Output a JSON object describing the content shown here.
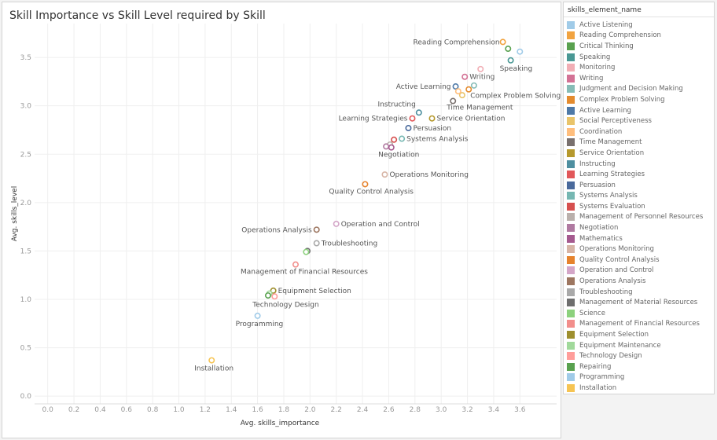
{
  "chart_data": {
    "type": "scatter",
    "title": "Skill Importance vs Skill Level required by Skill",
    "xlabel": "Avg. skills_importance",
    "ylabel": "Avg. skills_level",
    "xlim": [
      -0.1,
      3.88
    ],
    "ylim": [
      -0.08,
      3.85
    ],
    "xticks": [
      "0.0",
      "0.2",
      "0.4",
      "0.6",
      "0.8",
      "1.0",
      "1.2",
      "1.4",
      "1.6",
      "1.8",
      "2.0",
      "2.2",
      "2.4",
      "2.6",
      "2.8",
      "3.0",
      "3.2",
      "3.4",
      "3.6"
    ],
    "yticks": [
      "0.0",
      "0.5",
      "1.0",
      "1.5",
      "2.0",
      "2.5",
      "3.0",
      "3.5"
    ],
    "grid": true,
    "legend_position": "right",
    "legend_title": "skills_element_name",
    "series": [
      {
        "name": "Active Listening",
        "color": "#a0cbe8",
        "x": 3.6,
        "y": 3.56,
        "label": ""
      },
      {
        "name": "Reading Comprehension",
        "color": "#f1a340",
        "x": 3.47,
        "y": 3.66,
        "label": "Reading Comprehension"
      },
      {
        "name": "Critical Thinking",
        "color": "#59a14f",
        "x": 3.51,
        "y": 3.59,
        "label": ""
      },
      {
        "name": "Speaking",
        "color": "#499894",
        "x": 3.53,
        "y": 3.47,
        "label": "Speaking"
      },
      {
        "name": "Monitoring",
        "color": "#f1aeb5",
        "x": 3.3,
        "y": 3.38,
        "label": ""
      },
      {
        "name": "Writing",
        "color": "#d37295",
        "x": 3.18,
        "y": 3.3,
        "label": "Writing"
      },
      {
        "name": "Judgment and Decision Making",
        "color": "#86bcb6",
        "x": 3.25,
        "y": 3.21,
        "label": ""
      },
      {
        "name": "Complex Problem Solving",
        "color": "#e48b2e",
        "x": 3.21,
        "y": 3.17,
        "label": "Complex Problem Solving"
      },
      {
        "name": "Active Learning",
        "color": "#4e79a7",
        "x": 3.11,
        "y": 3.2,
        "label": "Active Learning"
      },
      {
        "name": "Social Perceptiveness",
        "color": "#e9c46a",
        "x": 3.16,
        "y": 3.11,
        "label": ""
      },
      {
        "name": "Coordination",
        "color": "#ffbe7d",
        "x": 3.13,
        "y": 3.15,
        "label": ""
      },
      {
        "name": "Time Management",
        "color": "#79706e",
        "x": 3.09,
        "y": 3.05,
        "label": "Time Management"
      },
      {
        "name": "Service Orientation",
        "color": "#b6992d",
        "x": 2.93,
        "y": 2.87,
        "label": "Service Orientation"
      },
      {
        "name": "Instructing",
        "color": "#4e8fa0",
        "x": 2.83,
        "y": 2.93,
        "label": "Instructing"
      },
      {
        "name": "Learning Strategies",
        "color": "#e15759",
        "x": 2.78,
        "y": 2.87,
        "label": "Learning Strategies"
      },
      {
        "name": "Persuasion",
        "color": "#4a6a9c",
        "x": 2.75,
        "y": 2.77,
        "label": "Persuasion"
      },
      {
        "name": "Systems Analysis",
        "color": "#76b7b2",
        "x": 2.7,
        "y": 2.66,
        "label": "Systems Analysis"
      },
      {
        "name": "Systems Evaluation",
        "color": "#d6504f",
        "x": 2.64,
        "y": 2.65,
        "label": ""
      },
      {
        "name": "Management of Personnel Resources",
        "color": "#bab0ac",
        "x": 2.61,
        "y": 2.6,
        "label": ""
      },
      {
        "name": "Negotiation",
        "color": "#b07aa1",
        "x": 2.58,
        "y": 2.58,
        "label": "Negotiation"
      },
      {
        "name": "Mathematics",
        "color": "#a55a8f",
        "x": 2.62,
        "y": 2.57,
        "label": ""
      },
      {
        "name": "Operations Monitoring",
        "color": "#d7b5a6",
        "x": 2.57,
        "y": 2.29,
        "label": "Operations Monitoring"
      },
      {
        "name": "Quality Control Analysis",
        "color": "#e6832d",
        "x": 2.42,
        "y": 2.19,
        "label": "Quality Control Analysis"
      },
      {
        "name": "Operation and Control",
        "color": "#d4a6c8",
        "x": 2.2,
        "y": 1.78,
        "label": "Operation and Control"
      },
      {
        "name": "Operations Analysis",
        "color": "#9d7660",
        "x": 2.05,
        "y": 1.72,
        "label": "Operations Analysis"
      },
      {
        "name": "Troubleshooting",
        "color": "#a9a9a9",
        "x": 2.05,
        "y": 1.58,
        "label": "Troubleshooting"
      },
      {
        "name": "Management of Material Resources",
        "color": "#6e6e6e",
        "x": 1.98,
        "y": 1.5,
        "label": ""
      },
      {
        "name": "Science",
        "color": "#8cd17d",
        "x": 1.97,
        "y": 1.49,
        "label": ""
      },
      {
        "name": "Management of Financial Resources",
        "color": "#f28e8b",
        "x": 1.89,
        "y": 1.36,
        "label": "Management of Financial Resources"
      },
      {
        "name": "Equipment Selection",
        "color": "#9e8f2e",
        "x": 1.72,
        "y": 1.09,
        "label": "Equipment Selection"
      },
      {
        "name": "Equipment Maintenance",
        "color": "#a1d99b",
        "x": 1.69,
        "y": 1.06,
        "label": ""
      },
      {
        "name": "Technology Design",
        "color": "#ff9d9a",
        "x": 1.73,
        "y": 1.03,
        "label": "Technology Design"
      },
      {
        "name": "Repairing",
        "color": "#59a14f",
        "x": 1.68,
        "y": 1.04,
        "label": ""
      },
      {
        "name": "Programming",
        "color": "#a0cbe8",
        "x": 1.6,
        "y": 0.83,
        "label": "Programming"
      },
      {
        "name": "Installation",
        "color": "#f6c453",
        "x": 1.25,
        "y": 0.37,
        "label": "Installation"
      }
    ]
  }
}
